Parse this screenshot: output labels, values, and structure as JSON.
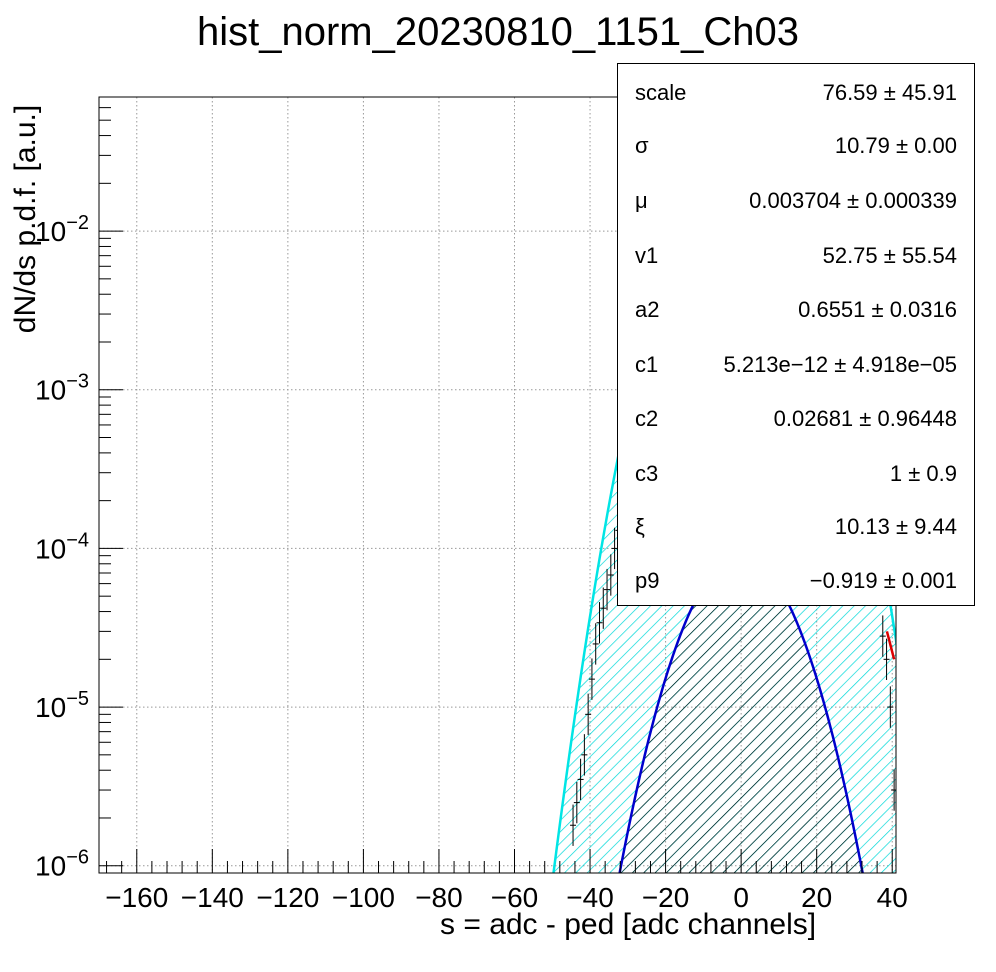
{
  "chart_data": {
    "type": "line",
    "title": "hist_norm_20230810_1151_Ch03",
    "xlabel": "s = adc - ped [adc channels]",
    "ylabel": "dN/ds p.d.f. [a.u.]",
    "xlim": [
      -170,
      41
    ],
    "ylim": [
      9e-07,
      0.07
    ],
    "yscale": "log",
    "grid": true,
    "x_ticks": [
      "−160",
      "−140",
      "−120",
      "−100",
      "−80",
      "−60",
      "−40",
      "−20",
      "0",
      "20",
      "40"
    ],
    "y_ticks": [
      {
        "base": "10",
        "exp": "−6",
        "value": 1e-06
      },
      {
        "base": "10",
        "exp": "−5",
        "value": 1e-05
      },
      {
        "base": "10",
        "exp": "−4",
        "value": 0.0001
      },
      {
        "base": "10",
        "exp": "−3",
        "value": 0.001
      },
      {
        "base": "10",
        "exp": "−2",
        "value": 0.01
      }
    ],
    "series": [
      {
        "kind": "gaussian",
        "amplitude": 0.036,
        "mu": 0.0,
        "sigma": 10.79,
        "color": "#00e5e5",
        "fill": "hatch-cyan"
      },
      {
        "kind": "gaussian",
        "amplitude": 9e-05,
        "mu": 0.0,
        "sigma": 10.6,
        "color": "#0000cc",
        "fill": "hatch-black"
      },
      {
        "kind": "tail",
        "points": [
          [
            38.6,
            3e-05
          ],
          [
            40.5,
            2e-05
          ]
        ],
        "color": "#dd0000"
      }
    ],
    "data_points": [
      [
        -44.5,
        1.8e-06
      ],
      [
        -43.5,
        2.5e-06
      ],
      [
        -42.5,
        3.5e-06
      ],
      [
        -41.5,
        5e-06
      ],
      [
        -40.5,
        9e-06
      ],
      [
        -39.5,
        1.5e-05
      ],
      [
        -38.5,
        2.5e-05
      ],
      [
        -37.5,
        3.4e-05
      ],
      [
        -36.5,
        4.2e-05
      ],
      [
        -35.5,
        5.5e-05
      ],
      [
        -34.5,
        6.8e-05
      ],
      [
        -33.5,
        0.0001
      ],
      [
        -32.5,
        0.00013
      ],
      [
        -31.5,
        0.00018
      ],
      [
        37.5,
        2.8e-05
      ],
      [
        38.5,
        2e-05
      ],
      [
        39.5,
        1e-05
      ],
      [
        40.5,
        3e-06
      ]
    ]
  },
  "stats": [
    {
      "name": "scale",
      "value": "76.59 ± 45.91"
    },
    {
      "name": "σ",
      "value": "10.79 ± 0.00"
    },
    {
      "name": "μ",
      "value": "0.003704 ± 0.000339"
    },
    {
      "name": "v1",
      "value": "52.75 ± 55.54"
    },
    {
      "name": "a2",
      "value": "0.6551 ± 0.0316"
    },
    {
      "name": "c1",
      "value": "5.213e−12 ± 4.918e−05"
    },
    {
      "name": "c2",
      "value": "0.02681 ± 0.96448"
    },
    {
      "name": "c3",
      "value": "1 ± 0.9"
    },
    {
      "name": "ξ",
      "value": "10.13 ± 9.44"
    },
    {
      "name": "p9",
      "value": "−0.919 ± 0.001"
    }
  ],
  "colors": {
    "fit_main": "#00e5e5",
    "fit_sub": "#0000cc",
    "tail": "#dd0000",
    "frame": "#000000"
  }
}
